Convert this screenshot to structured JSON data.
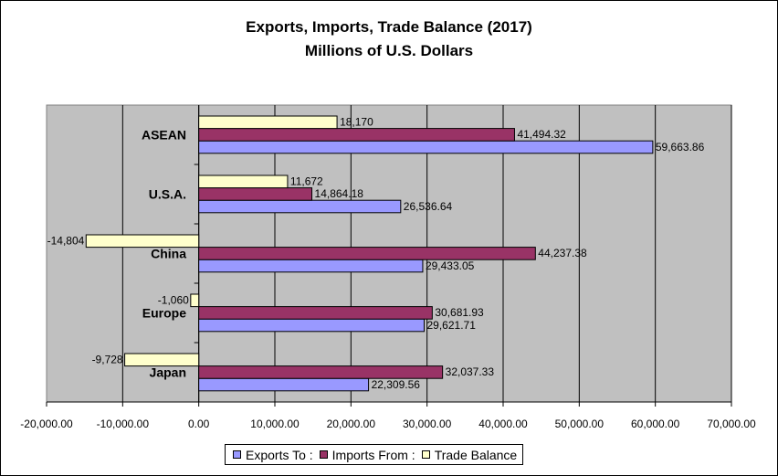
{
  "chart_data": {
    "type": "bar",
    "orientation": "horizontal",
    "title": "Exports, Imports, Trade Balance (2017)",
    "subtitle": "Millions of U.S. Dollars",
    "categories": [
      "ASEAN",
      "U.S.A.",
      "China",
      "Europe",
      "Japan"
    ],
    "series": [
      {
        "name": "Exports To :",
        "color": "#9999ff",
        "values": [
          59663.86,
          26536.64,
          29433.05,
          29621.71,
          22309.56
        ],
        "labels": [
          "59,663.86",
          "26,536.64",
          "29,433.05",
          "29,621.71",
          "22,309.56"
        ]
      },
      {
        "name": "Imports From :",
        "color": "#993366",
        "values": [
          41494.32,
          14864.18,
          44237.38,
          30681.93,
          32037.33
        ],
        "labels": [
          "41,494.32",
          "14,864.18",
          "44,237.38",
          "30,681.93",
          "32,037.33"
        ]
      },
      {
        "name": "Trade Balance",
        "color": "#ffffcc",
        "values": [
          18170,
          11672,
          -14804,
          -1060,
          -9728
        ],
        "labels": [
          "18,170",
          "11,672",
          "-14,804",
          "-1,060",
          "-9,728"
        ]
      }
    ],
    "xlim": [
      -20000,
      70000
    ],
    "xticks": [
      -20000,
      -10000,
      0,
      10000,
      20000,
      30000,
      40000,
      50000,
      60000,
      70000
    ],
    "xtick_labels": [
      "-20,000.00",
      "-10,000.00",
      "0.00",
      "10,000.00",
      "20,000.00",
      "30,000.00",
      "40,000.00",
      "50,000.00",
      "60,000.00",
      "70,000.00"
    ],
    "plot_background": "#c0c0c0",
    "grid": true,
    "legend_position": "bottom"
  }
}
